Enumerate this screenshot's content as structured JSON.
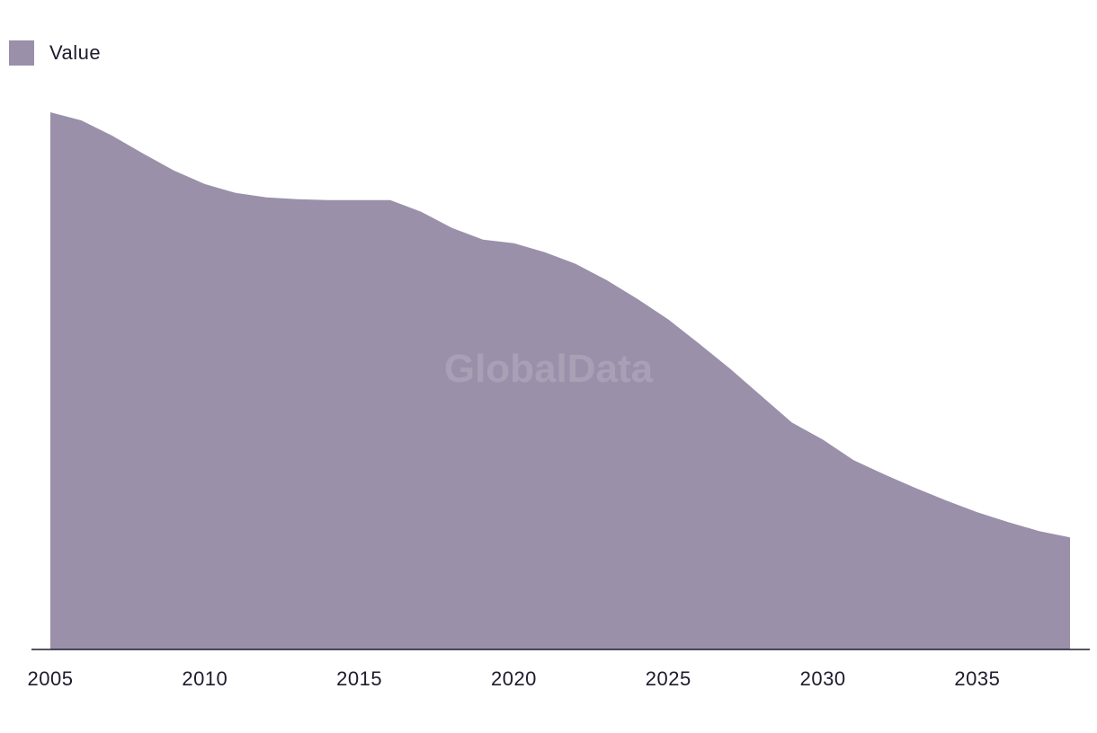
{
  "chart_data": {
    "type": "area",
    "title": "",
    "xlabel": "",
    "ylabel": "",
    "legend": {
      "position": "top-left",
      "entries": [
        "Value"
      ]
    },
    "watermark": "GlobalData",
    "grid": false,
    "x": [
      2005,
      2006,
      2007,
      2008,
      2009,
      2010,
      2011,
      2012,
      2013,
      2014,
      2015,
      2016,
      2017,
      2018,
      2019,
      2020,
      2021,
      2022,
      2023,
      2024,
      2025,
      2026,
      2027,
      2028,
      2029,
      2030,
      2031,
      2032,
      2033,
      2034,
      2035,
      2036,
      2037,
      2038
    ],
    "series": [
      {
        "name": "Value",
        "color": "#9a90aa",
        "values": [
          599,
          590,
          573,
          553,
          534,
          519,
          509,
          504,
          502,
          501,
          501,
          501,
          488,
          470,
          457,
          453,
          443,
          430,
          412,
          391,
          368,
          341,
          313,
          283,
          253,
          234,
          211,
          195,
          180,
          166,
          153,
          142,
          132,
          125
        ]
      }
    ],
    "x_ticks": [
      "2005",
      "2010",
      "2015",
      "2020",
      "2025",
      "2030",
      "2035"
    ],
    "xlim": [
      2005,
      2038
    ],
    "ylim": [
      0,
      600
    ],
    "y_units_note": "relative (no axis shown)"
  }
}
